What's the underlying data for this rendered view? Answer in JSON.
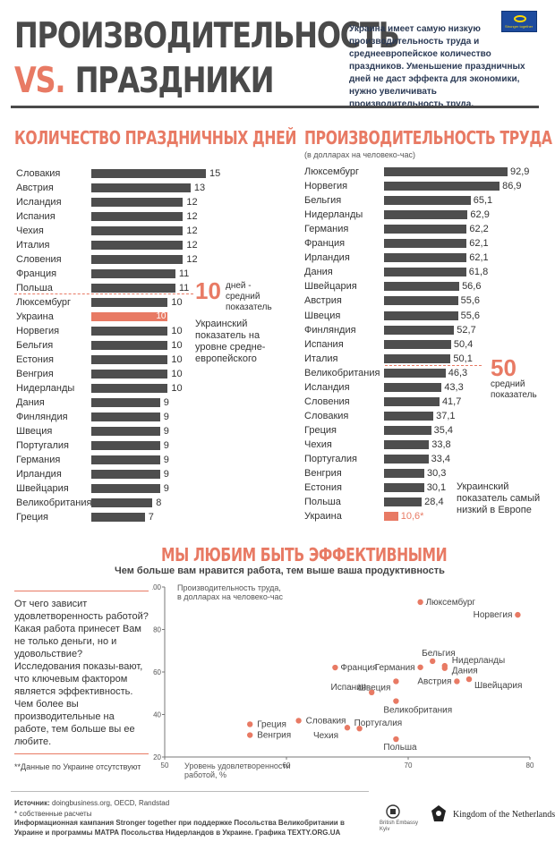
{
  "header": {
    "title_line1": "ПРОИЗВОДИТЕЛЬНОСТЬ",
    "title_vs": "VS.",
    "title_line2": "ПРАЗДНИКИ",
    "intro": "Украина имеет самую низкую производительность труда и среднеевропейское количество праздников. Уменьшение праздничных дней не даст эффекта для экономики, нужно увеличивать производительность труда.",
    "flag_caption": "Stronger together"
  },
  "holidays": {
    "title": "КОЛИЧЕСТВО ПРАЗДНИЧНЫХ ДНЕЙ",
    "avg_number": "10",
    "avg_text": "дней - средний показатель",
    "ukraine_note": "Украинский показатель на уровне средне-европейского"
  },
  "productivity": {
    "title": "ПРОИЗВОДИТЕЛЬНОСТЬ ТРУДА",
    "subtitle": "(в долларах на человеко-час)",
    "avg_number": "50",
    "avg_text": "средний показатель",
    "ukraine_note": "Украинский показатель самый низкий в Европе"
  },
  "satisfaction": {
    "title": "МЫ ЛЮБИМ БЫТЬ ЭФФЕКТИВНЫМИ",
    "subtitle": "Чем больше вам нравится работа, тем выше ваша продуктивность",
    "side_text": "От чего зависит удовлетворенность работой? Какая работа принесет Вам не только деньги, но и удовольствие? Исследования показы-вают, что ключевым фактором является эффективность. Чем более вы производительные на работе, тем больше вы ее любите.",
    "footnote": "**Данные по Украине отсутствуют"
  },
  "footer": {
    "source_label": "Источник:",
    "source_text": "doingbusiness.org, OECD, Randstad",
    "own_calc": "* собственные расчеты",
    "campaign": "Информационная кампания Stronger together при поддержке Посольства Великобритании в Украине и программы МАТРА Посольства Нидерландов в Украине. Графика TEXTY.ORG.UA",
    "logo_uk_line1": "British Embassy",
    "logo_uk_line2": "Kyiv",
    "logo_nl": "Kingdom of the Netherlands"
  },
  "colors": {
    "accent": "#e87a64",
    "bar": "#4e4e4e",
    "text": "#333333"
  },
  "chart_data": [
    {
      "type": "bar",
      "title": "КОЛИЧЕСТВО ПРАЗДНИЧНЫХ ДНЕЙ",
      "orientation": "horizontal",
      "categories": [
        "Словакия",
        "Австрия",
        "Исландия",
        "Испания",
        "Чехия",
        "Италия",
        "Словения",
        "Франция",
        "Польша",
        "Люксембург",
        "Украина",
        "Норвегия",
        "Бельгия",
        "Естония",
        "Венгрия",
        "Нидерланды",
        "Дания",
        "Финляндия",
        "Швеция",
        "Португалия",
        "Германия",
        "Ирландия",
        "Швейцария",
        "Великобритания",
        "Греция"
      ],
      "values": [
        15,
        13,
        12,
        12,
        12,
        12,
        12,
        11,
        11,
        10,
        10,
        10,
        10,
        10,
        10,
        10,
        9,
        9,
        9,
        9,
        9,
        9,
        9,
        8,
        7
      ],
      "highlight": "Украина",
      "average": 10,
      "xlim": [
        0,
        15
      ]
    },
    {
      "type": "bar",
      "title": "ПРОИЗВОДИТЕЛЬНОСТЬ ТРУДА",
      "orientation": "horizontal",
      "categories": [
        "Люксембург",
        "Норвегия",
        "Бельгия",
        "Нидерланды",
        "Германия",
        "Франция",
        "Ирландия",
        "Дания",
        "Швейцария",
        "Австрия",
        "Швеция",
        "Финляндия",
        "Испания",
        "Италия",
        "Великобритания",
        "Исландия",
        "Словения",
        "Словакия",
        "Греция",
        "Чехия",
        "Португалия",
        "Венгрия",
        "Естония",
        "Польша",
        "Украина"
      ],
      "values": [
        92.9,
        86.9,
        65.1,
        62.9,
        62.2,
        62.1,
        62.1,
        61.8,
        56.6,
        55.6,
        55.6,
        52.7,
        50.4,
        50.1,
        46.3,
        43.3,
        41.7,
        37.1,
        35.4,
        33.8,
        33.4,
        30.3,
        30.1,
        28.4,
        10.6
      ],
      "value_labels": [
        "92,9",
        "86,9",
        "65,1",
        "62,9",
        "62,2",
        "62,1",
        "62,1",
        "61,8",
        "56,6",
        "55,6",
        "55,6",
        "52,7",
        "50,4",
        "50,1",
        "46,3",
        "43,3",
        "41,7",
        "37,1",
        "35,4",
        "33,8",
        "33,4",
        "30,3",
        "30,1",
        "28,4",
        "10,6*"
      ],
      "highlight": "Украина",
      "average": 50,
      "xlim": [
        0,
        92.9
      ]
    },
    {
      "type": "scatter",
      "ylabel": "Производительность труда, в долларах на человеко-час",
      "xlabel": "Уровень удовлетворенности работой, %",
      "xlim": [
        50,
        80
      ],
      "ylim": [
        20,
        100
      ],
      "xticks": [
        50,
        60,
        70,
        80
      ],
      "yticks": [
        20,
        40,
        60,
        80,
        100
      ],
      "points": [
        {
          "label": "Люксембург",
          "x": 71,
          "y": 92.9
        },
        {
          "label": "Норвегия",
          "x": 79,
          "y": 86.9
        },
        {
          "label": "Бельгия",
          "x": 72,
          "y": 65.1
        },
        {
          "label": "Нидерланды",
          "x": 73,
          "y": 62.9
        },
        {
          "label": "Германия",
          "x": 71,
          "y": 62.2
        },
        {
          "label": "Франция",
          "x": 64,
          "y": 62.1
        },
        {
          "label": "Дания",
          "x": 73,
          "y": 61.8
        },
        {
          "label": "Швейцария",
          "x": 75,
          "y": 56.6
        },
        {
          "label": "Австрия",
          "x": 74,
          "y": 55.6
        },
        {
          "label": "Швеция",
          "x": 69,
          "y": 55.6
        },
        {
          "label": "Испания",
          "x": 67,
          "y": 50.4
        },
        {
          "label": "Великобритания",
          "x": 69,
          "y": 46.3
        },
        {
          "label": "Словакия",
          "x": 61,
          "y": 37.1
        },
        {
          "label": "Греция",
          "x": 57,
          "y": 35.4
        },
        {
          "label": "Португалия",
          "x": 66,
          "y": 33.4
        },
        {
          "label": "Чехия",
          "x": 65,
          "y": 33.8
        },
        {
          "label": "Венгрия",
          "x": 57,
          "y": 30.3
        },
        {
          "label": "Польша",
          "x": 69,
          "y": 28.4
        }
      ]
    }
  ]
}
